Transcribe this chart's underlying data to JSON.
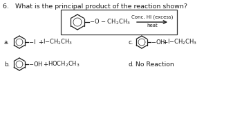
{
  "question": "6.   What is the principal product of the reaction shown?",
  "reagent_label1": "Conc. HI (excess)",
  "reagent_label2": "heat",
  "ans_a_label": "a.",
  "ans_b_label": "b.",
  "ans_c_label": "c.",
  "ans_d_label": "d.",
  "ans_d_text": "No Reaction",
  "bg": "#ffffff",
  "text_color": "#1a1a1a",
  "box_color": "#333333",
  "font_size_q": 6.8,
  "font_size_ans": 6.2,
  "font_size_chem": 6.0,
  "font_size_reagent": 5.0
}
